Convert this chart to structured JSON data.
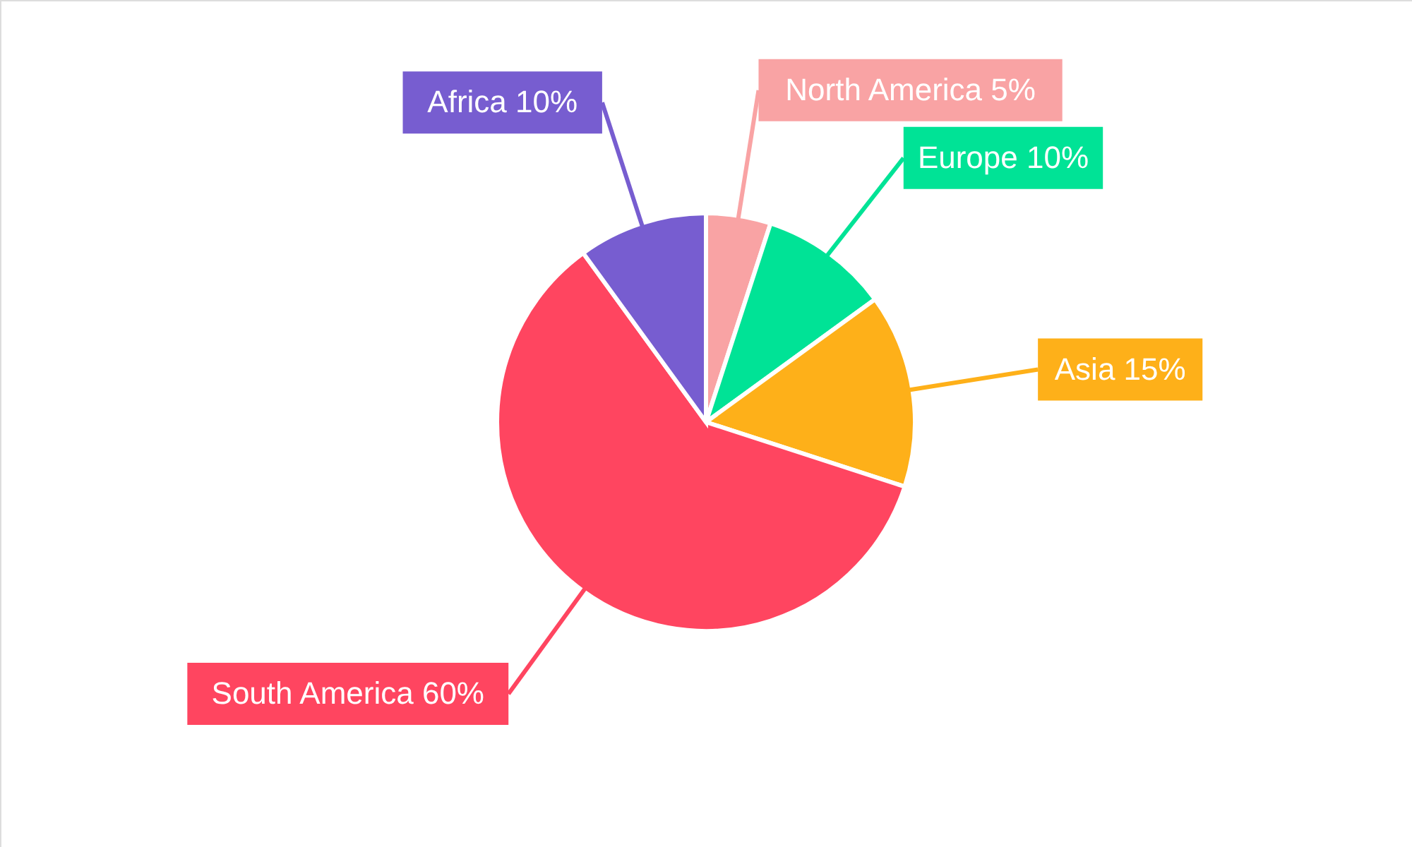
{
  "chart_data": {
    "type": "pie",
    "categories": [
      "North America",
      "Europe",
      "Asia",
      "South America",
      "Africa"
    ],
    "values": [
      5,
      10,
      15,
      60,
      10
    ],
    "colors": [
      "#f9a3a4",
      "#00e396",
      "#feb019",
      "#ff4560",
      "#775dd0"
    ],
    "value_labels": [
      "5%",
      "10%",
      "15%",
      "60%",
      "10%"
    ]
  }
}
